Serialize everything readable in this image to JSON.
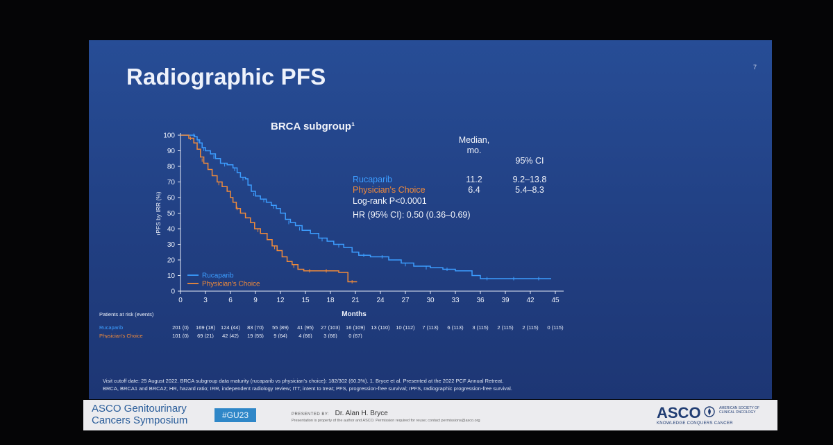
{
  "slide": {
    "title": "Radiographic PFS",
    "page_number": "7",
    "background_color": "#223f84"
  },
  "chart_data": {
    "type": "line",
    "title": "BRCA subgroup¹",
    "xlabel": "Months",
    "ylabel": "rPFS by IRR (%)",
    "x_ticks": [
      0,
      3,
      6,
      9,
      12,
      15,
      18,
      21,
      24,
      27,
      30,
      33,
      36,
      39,
      42,
      45
    ],
    "y_ticks": [
      0,
      10,
      20,
      30,
      40,
      50,
      60,
      70,
      80,
      90,
      100
    ],
    "xlim": [
      0,
      46
    ],
    "ylim": [
      0,
      100
    ],
    "legend_placement": "bottom-left",
    "series": [
      {
        "name": "Rucaparib",
        "color": "#3c9dff",
        "points": [
          [
            0,
            100
          ],
          [
            1.4,
            100
          ],
          [
            1.7,
            99
          ],
          [
            2.0,
            97
          ],
          [
            2.3,
            95
          ],
          [
            2.6,
            92
          ],
          [
            3.0,
            90
          ],
          [
            3.6,
            88
          ],
          [
            4.2,
            85
          ],
          [
            4.8,
            82
          ],
          [
            5.6,
            81
          ],
          [
            6.3,
            79
          ],
          [
            6.8,
            76
          ],
          [
            7.2,
            73
          ],
          [
            7.8,
            72
          ],
          [
            8.1,
            68
          ],
          [
            8.5,
            64
          ],
          [
            9.0,
            61
          ],
          [
            9.6,
            59
          ],
          [
            10.3,
            57
          ],
          [
            10.9,
            55
          ],
          [
            11.5,
            53
          ],
          [
            12.0,
            50
          ],
          [
            12.6,
            46
          ],
          [
            13.2,
            44
          ],
          [
            13.8,
            42
          ],
          [
            14.6,
            39
          ],
          [
            15.6,
            37
          ],
          [
            16.6,
            34
          ],
          [
            17.6,
            32
          ],
          [
            18.4,
            30
          ],
          [
            19.6,
            28
          ],
          [
            20.6,
            25
          ],
          [
            21.4,
            23
          ],
          [
            22.8,
            22
          ],
          [
            24.0,
            22
          ],
          [
            25.0,
            20
          ],
          [
            26.5,
            18
          ],
          [
            28.0,
            16
          ],
          [
            30.0,
            15
          ],
          [
            31.5,
            14
          ],
          [
            33.0,
            13
          ],
          [
            35.0,
            10
          ],
          [
            36.0,
            8
          ],
          [
            38.0,
            8
          ],
          [
            42.0,
            8
          ],
          [
            44.5,
            8
          ]
        ],
        "censor_marks": [
          [
            1.6,
            100
          ],
          [
            2.1,
            96
          ],
          [
            2.8,
            91
          ],
          [
            4.0,
            86
          ],
          [
            5.3,
            81
          ],
          [
            6.5,
            78
          ],
          [
            7.5,
            72
          ],
          [
            8.8,
            62
          ],
          [
            10.0,
            58
          ],
          [
            11.2,
            54
          ],
          [
            13.0,
            44
          ],
          [
            14.3,
            40
          ],
          [
            17.0,
            33
          ],
          [
            19.0,
            29
          ],
          [
            22.0,
            23
          ],
          [
            24.2,
            22
          ],
          [
            27.0,
            17
          ],
          [
            29.5,
            15
          ],
          [
            32.0,
            14
          ],
          [
            36.8,
            8
          ],
          [
            40.0,
            8
          ],
          [
            43.0,
            8
          ]
        ]
      },
      {
        "name": "Physician's Choice",
        "color": "#f08a3a",
        "points": [
          [
            0,
            100
          ],
          [
            1.0,
            98
          ],
          [
            1.6,
            95
          ],
          [
            2.0,
            91
          ],
          [
            2.4,
            86
          ],
          [
            2.8,
            82
          ],
          [
            3.3,
            78
          ],
          [
            3.8,
            74
          ],
          [
            4.4,
            70
          ],
          [
            5.0,
            67
          ],
          [
            5.6,
            64
          ],
          [
            6.0,
            60
          ],
          [
            6.3,
            57
          ],
          [
            6.7,
            53
          ],
          [
            7.2,
            50
          ],
          [
            7.8,
            47
          ],
          [
            8.4,
            44
          ],
          [
            8.9,
            40
          ],
          [
            9.6,
            37
          ],
          [
            10.4,
            33
          ],
          [
            11.0,
            29
          ],
          [
            11.6,
            26
          ],
          [
            12.2,
            22
          ],
          [
            12.8,
            19
          ],
          [
            13.4,
            17
          ],
          [
            14.1,
            14
          ],
          [
            14.8,
            13
          ],
          [
            16.5,
            13
          ],
          [
            18.0,
            13
          ],
          [
            19.0,
            12
          ],
          [
            20.0,
            12
          ],
          [
            20.1,
            6
          ],
          [
            21.2,
            6
          ]
        ],
        "censor_marks": [
          [
            1.2,
            98
          ],
          [
            2.6,
            84
          ],
          [
            4.6,
            69
          ],
          [
            6.8,
            53
          ],
          [
            9.3,
            39
          ],
          [
            11.3,
            28
          ],
          [
            13.6,
            16
          ],
          [
            15.5,
            13
          ],
          [
            17.5,
            13
          ],
          [
            20.6,
            6
          ]
        ]
      }
    ],
    "stats": {
      "col_median": "Median,\nmo.",
      "col_ci": "95% CI",
      "rows": [
        {
          "label": "Rucaparib",
          "median": "11.2",
          "ci": "9.2–13.8",
          "color": "#3c9dff"
        },
        {
          "label": "Physician's Choice",
          "median": "6.4",
          "ci": "5.4–8.3",
          "color": "#f08a3a"
        }
      ],
      "logrank": "Log-rank P<0.0001",
      "hr": "HR (95% CI): 0.50 (0.36–0.69)"
    },
    "at_risk": {
      "title": "Patients at risk (events)",
      "rows": [
        {
          "label": "Rucaparib",
          "color": "#3c9dff",
          "values": [
            "201 (0)",
            "169 (18)",
            "124 (44)",
            "83 (70)",
            "55 (89)",
            "41 (95)",
            "27 (103)",
            "16 (109)",
            "13 (110)",
            "10 (112)",
            "7 (113)",
            "6 (113)",
            "3 (115)",
            "2 (115)",
            "2 (115)",
            "0 (115)"
          ]
        },
        {
          "label": "Physician's Choice",
          "color": "#f08a3a",
          "values": [
            "101 (0)",
            "69 (21)",
            "42 (42)",
            "19 (55)",
            "9 (64)",
            "4 (66)",
            "3 (66)",
            "0 (67)"
          ]
        }
      ]
    }
  },
  "footnotes": [
    "Visit cutoff date: 25 August 2022. BRCA subgroup data maturity (rucaparib vs physician's choice): 182/302 (60.3%). 1. Bryce et al. Presented at the 2022 PCF Annual Retreat.",
    "BRCA, BRCA1 and BRCA2; HR, hazard ratio; IRR, independent radiology review; ITT, intent to treat; PFS, progression-free survival; rPFS, radiographic progression-free survival."
  ],
  "footer": {
    "conference_line1": "ASCO Genitourinary",
    "conference_line2": "Cancers Symposium",
    "hashtag": "#GU23",
    "presented_by_label": "PRESENTED BY:",
    "presenter": "Dr. Alan H. Bryce",
    "disclaimer": "Presentation is property of the author and ASCO. Permission required for reuse; contact permissions@asco.org",
    "org_name": "ASCO",
    "org_full": "American Society of Clinical Oncology",
    "org_tagline": "KNOWLEDGE CONQUERS CANCER",
    "brand_color": "#213d73",
    "accent_color": "#2f87c8"
  }
}
